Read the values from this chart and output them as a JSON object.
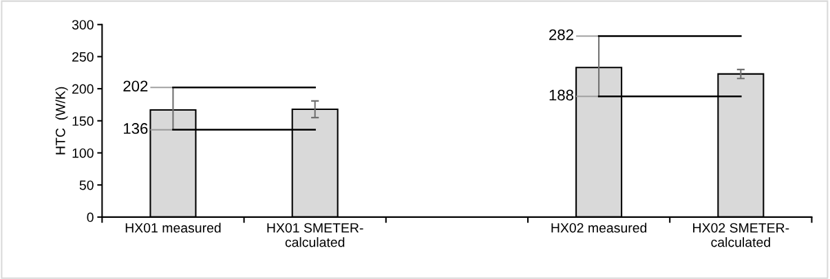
{
  "chart_data": {
    "type": "bar",
    "ylabel": "HTC  (W/K)",
    "categories": [
      "HX01 measured",
      "HX01 SMETER-\ncalculated",
      null,
      "HX02 measured",
      "HX02 SMETER-\ncalculated"
    ],
    "series": [
      {
        "color": "#d9d9d9",
        "values": [
          167,
          168,
          null,
          233,
          223
        ],
        "errors": [
          [
            136,
            202
          ],
          13,
          null,
          [
            188,
            282
          ],
          7
        ]
      },
      {
        "type": "line",
        "color": "#000000",
        "values": [
          202,
          202,
          null,
          282,
          282
        ]
      },
      {
        "type": "line",
        "color": "#000000",
        "values": [
          136,
          136,
          null,
          188,
          188
        ]
      }
    ],
    "annotations": [
      {
        "text": "202",
        "x": "HX01 measured",
        "y": 202
      },
      {
        "text": "136",
        "x": "HX01 measured",
        "y": 136
      },
      {
        "text": "282",
        "x": "HX02 measured",
        "y": 282
      },
      {
        "text": "188",
        "x": "HX02 measured",
        "y": 188
      }
    ],
    "ylim": [
      0,
      300
    ],
    "yticks": [
      0,
      50,
      100,
      150,
      200,
      250,
      300
    ],
    "grid": false,
    "legend": false
  }
}
